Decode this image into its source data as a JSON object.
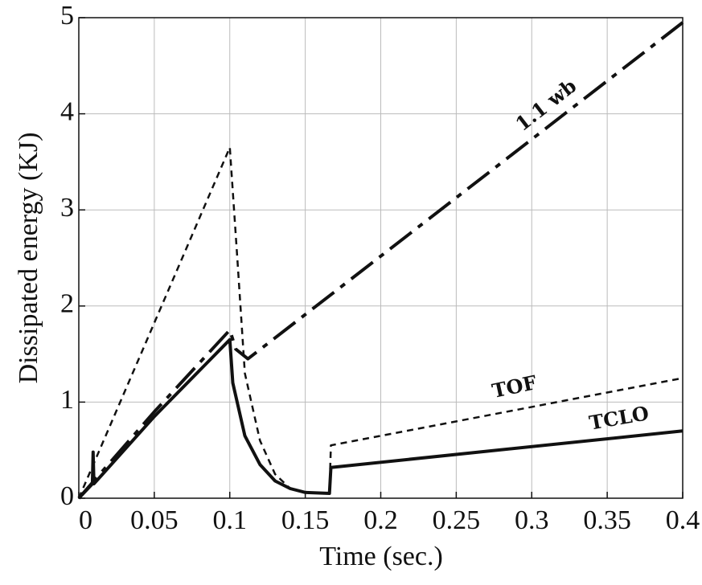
{
  "chart_data": {
    "type": "line",
    "x_label": "Time (sec.)",
    "y_label": "Dissipated energy (KJ)",
    "xlim": [
      0,
      0.4
    ],
    "ylim": [
      0,
      5
    ],
    "xticks": [
      0,
      0.05,
      0.1,
      0.15,
      0.2,
      0.25,
      0.3,
      0.35,
      0.4
    ],
    "yticks": [
      0,
      1,
      2,
      3,
      4,
      5
    ],
    "grid": true,
    "series": [
      {
        "name": "1.1 wb",
        "color": "#111111",
        "x": [
          0,
          0.05,
          0.1,
          0.104,
          0.112,
          0.4
        ],
        "values": [
          0,
          0.9,
          1.75,
          1.55,
          1.45,
          4.95
        ]
      },
      {
        "name": "TOF",
        "color": "#111111",
        "x": [
          0,
          0.1,
          0.105,
          0.11,
          0.12,
          0.13,
          0.14,
          0.15,
          0.166,
          0.167,
          0.4
        ],
        "values": [
          0,
          3.65,
          2.5,
          1.3,
          0.6,
          0.25,
          0.1,
          0.06,
          0.05,
          0.55,
          1.25
        ]
      },
      {
        "name": "TCLO",
        "color": "#111111",
        "x": [
          0,
          0.009,
          0.0095,
          0.01,
          0.05,
          0.1,
          0.102,
          0.11,
          0.12,
          0.13,
          0.14,
          0.15,
          0.166,
          0.167,
          0.4
        ],
        "values": [
          0,
          0.15,
          0.48,
          0.15,
          0.85,
          1.65,
          1.2,
          0.65,
          0.35,
          0.18,
          0.1,
          0.06,
          0.05,
          0.32,
          0.7
        ]
      }
    ]
  }
}
